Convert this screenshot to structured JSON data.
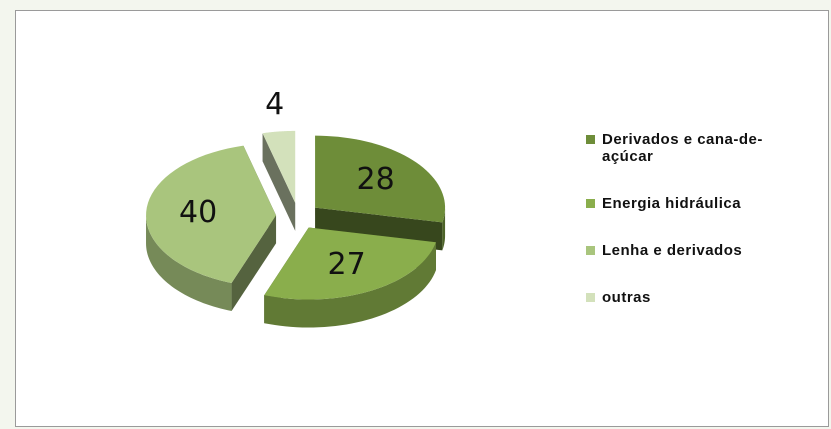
{
  "chart_data": {
    "type": "pie3d",
    "categories": [
      "Derivados e cana-de-açúcar",
      "Energia hidráulica",
      "Lenha e derivados",
      "outras"
    ],
    "series": [
      {
        "values": [
          28,
          27,
          40,
          4
        ],
        "colors": [
          "#6e8d39",
          "#8aae4c",
          "#a9c57d",
          "#d3e1bb"
        ]
      }
    ],
    "legend": "right"
  }
}
